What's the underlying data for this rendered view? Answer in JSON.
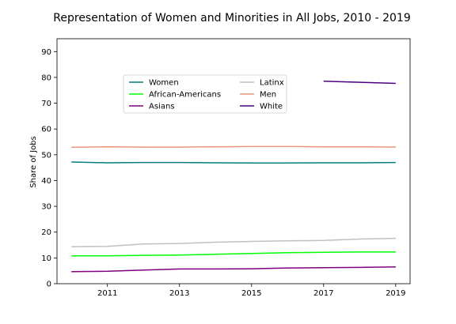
{
  "chart_data": {
    "type": "line",
    "title": "Representation of Women and Minorities in All Jobs, 2010 - 2019",
    "xlabel": "",
    "ylabel": "Share of Jobs",
    "xlim": [
      2009.6,
      2019.4
    ],
    "ylim": [
      0,
      95
    ],
    "x_ticks": [
      2011,
      2013,
      2015,
      2017,
      2019
    ],
    "y_ticks": [
      0,
      10,
      20,
      30,
      40,
      50,
      60,
      70,
      80,
      90
    ],
    "legend_position": "upper-center",
    "grid": false,
    "series": [
      {
        "name": "Women",
        "color": "#008080",
        "x": [
          2010,
          2011,
          2012,
          2013,
          2014,
          2015,
          2016,
          2017,
          2018,
          2019
        ],
        "values": [
          47.2,
          46.9,
          47.0,
          47.0,
          46.9,
          46.8,
          46.8,
          46.9,
          46.9,
          47.0
        ]
      },
      {
        "name": "African-Americans",
        "color": "#00ff00",
        "x": [
          2010,
          2011,
          2012,
          2013,
          2014,
          2015,
          2016,
          2017,
          2018,
          2019
        ],
        "values": [
          10.8,
          10.8,
          11.0,
          11.1,
          11.4,
          11.7,
          12.0,
          12.2,
          12.3,
          12.3
        ]
      },
      {
        "name": "Asians",
        "color": "#800080",
        "x": [
          2010,
          2011,
          2012,
          2013,
          2014,
          2015,
          2016,
          2017,
          2018,
          2019
        ],
        "values": [
          4.7,
          4.8,
          5.3,
          5.7,
          5.7,
          5.8,
          6.1,
          6.2,
          6.3,
          6.5
        ]
      },
      {
        "name": "Latinx",
        "color": "#c0c0c0",
        "x": [
          2010,
          2011,
          2012,
          2013,
          2014,
          2015,
          2016,
          2017,
          2018,
          2019
        ],
        "values": [
          14.3,
          14.5,
          15.4,
          15.6,
          16.1,
          16.4,
          16.6,
          16.8,
          17.3,
          17.6
        ]
      },
      {
        "name": "Men",
        "color": "#e9967a",
        "x": [
          2010,
          2011,
          2012,
          2013,
          2014,
          2015,
          2016,
          2017,
          2018,
          2019
        ],
        "values": [
          52.9,
          53.1,
          53.0,
          53.0,
          53.1,
          53.2,
          53.2,
          53.1,
          53.1,
          53.0
        ]
      },
      {
        "name": "White",
        "color": "#4b0082",
        "x": [
          2017,
          2018,
          2019
        ],
        "values": [
          78.5,
          78.1,
          77.7
        ]
      }
    ]
  }
}
